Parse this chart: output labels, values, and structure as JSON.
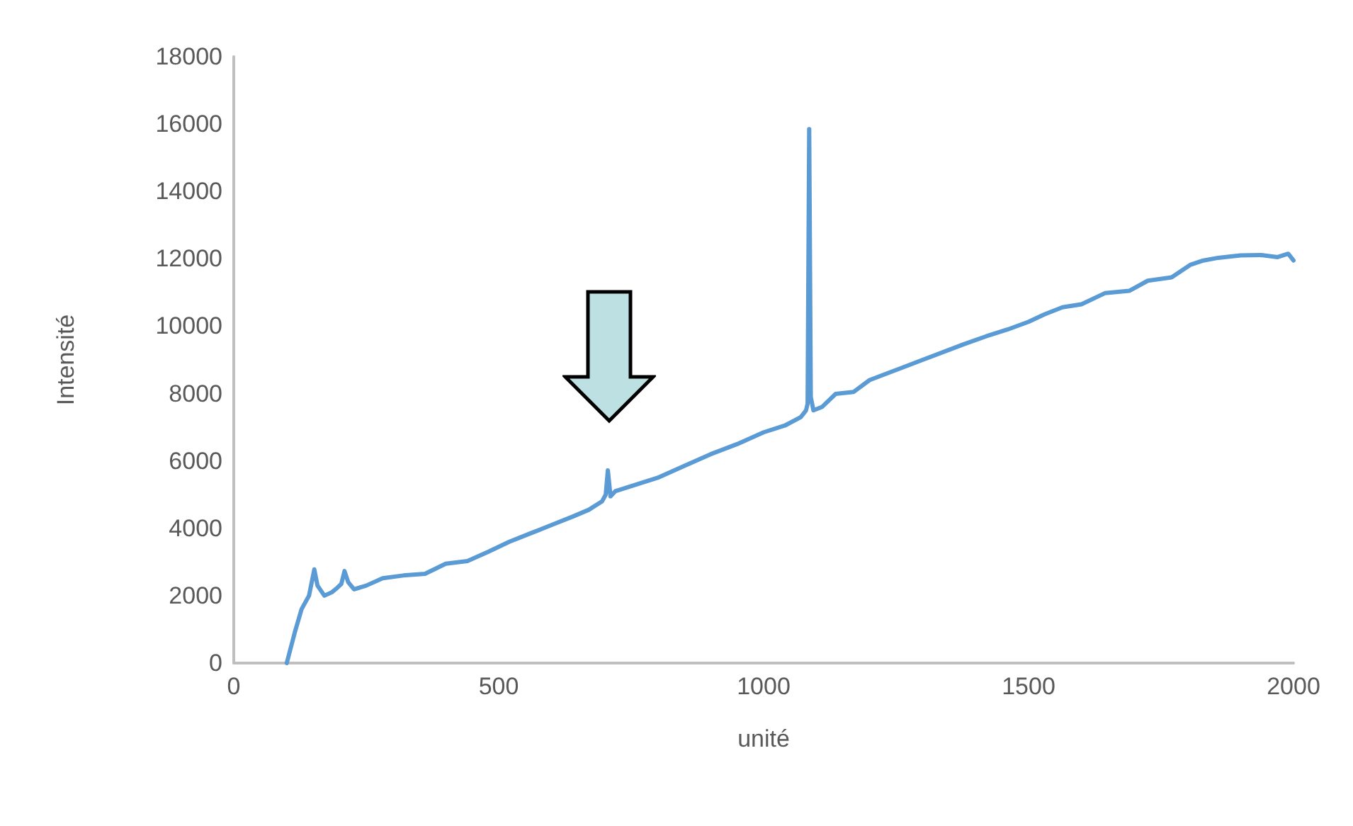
{
  "chart_data": {
    "type": "line",
    "xlabel": "unité",
    "ylabel": "Intensité",
    "xlim": [
      0,
      2000
    ],
    "xticks": [
      0,
      500,
      1000,
      1500,
      2000
    ],
    "ylim": [
      0,
      18000
    ],
    "yticks": [
      0,
      2000,
      4000,
      6000,
      8000,
      10000,
      12000,
      14000,
      16000,
      18000
    ],
    "grid": false,
    "marker": "none",
    "line_style": "solid",
    "series": [
      {
        "color": "#5b9bd5",
        "x": [
          100,
          115,
          128,
          142,
          152,
          158,
          171,
          185,
          195,
          203,
          209,
          216,
          227,
          250,
          281,
          320,
          361,
          400,
          441,
          480,
          520,
          560,
          600,
          640,
          670,
          695,
          702,
          706,
          711,
          720,
          760,
          800,
          850,
          900,
          950,
          1000,
          1040,
          1070,
          1080,
          1083,
          1086,
          1089,
          1094,
          1110,
          1136,
          1170,
          1200,
          1250,
          1300,
          1377,
          1420,
          1460,
          1500,
          1530,
          1564,
          1600,
          1644,
          1690,
          1725,
          1770,
          1805,
          1830,
          1858,
          1900,
          1939,
          1970,
          1990,
          2000
        ],
        "values": [
          0,
          900,
          1600,
          2000,
          2780,
          2300,
          2000,
          2100,
          2230,
          2350,
          2730,
          2400,
          2190,
          2300,
          2520,
          2600,
          2650,
          2950,
          3030,
          3300,
          3600,
          3850,
          4100,
          4350,
          4550,
          4800,
          5000,
          5720,
          4950,
          5100,
          5300,
          5500,
          5850,
          6200,
          6500,
          6850,
          7050,
          7300,
          7500,
          7700,
          15850,
          7900,
          7500,
          7600,
          7990,
          8050,
          8400,
          8700,
          9000,
          9460,
          9700,
          9900,
          10130,
          10350,
          10560,
          10650,
          10980,
          11050,
          11350,
          11450,
          11820,
          11950,
          12030,
          12100,
          12110,
          12050,
          12150,
          11950
        ]
      }
    ]
  }
}
